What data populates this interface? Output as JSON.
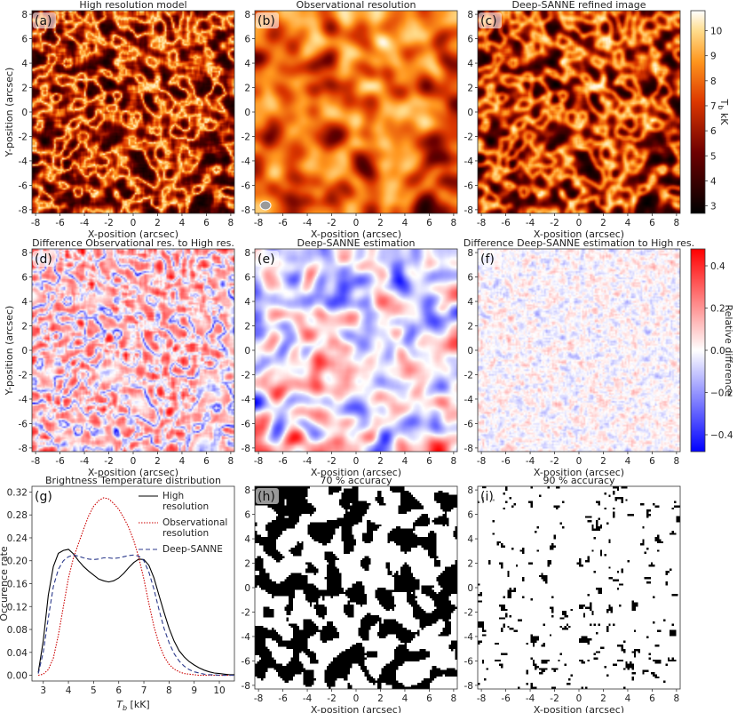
{
  "colors": {
    "heat_low": "#000000",
    "heat_high": "#ffffff",
    "div_neg": "#0000ff",
    "div_pos": "#ff0000",
    "line_high": "#000000",
    "line_obs": "#cc0000",
    "line_deep": "#2c3a8c"
  },
  "chart_data": [
    {
      "id": "a",
      "letter": "(a)",
      "type": "heatmap",
      "title": "High resolution model",
      "colormap": "gist_heat_r",
      "xlabel": "X-position (arcsec)",
      "ylabel": "Y-position (arcsec)",
      "xlim": [
        -8.3,
        8.3
      ],
      "ylim": [
        -8.3,
        8.3
      ],
      "xticks": [
        "-8",
        "-6",
        "-4",
        "-2",
        "0",
        "2",
        "4",
        "6",
        "8"
      ],
      "yticks": [
        "-8",
        "-6",
        "-4",
        "-2",
        "0",
        "2",
        "4",
        "6",
        "8"
      ]
    },
    {
      "id": "b",
      "letter": "(b)",
      "type": "heatmap",
      "title": "Observational resolution",
      "colormap": "gist_heat_r",
      "xlabel": "X-position (arcsec)",
      "xlim": [
        -8.3,
        8.3
      ],
      "ylim": [
        -8.3,
        8.3
      ],
      "xticks": [
        "-8",
        "-6",
        "-4",
        "-2",
        "0",
        "2",
        "4",
        "6",
        "8"
      ],
      "yticks": [
        "-8",
        "-6",
        "-4",
        "-2",
        "0",
        "2",
        "4",
        "6",
        "8"
      ],
      "beam": "grey ellipse, bottom-left"
    },
    {
      "id": "c",
      "letter": "(c)",
      "type": "heatmap",
      "title": "Deep-SANNE refined image",
      "colormap": "gist_heat_r",
      "xlabel": "X-position (arcsec)",
      "xlim": [
        -8.3,
        8.3
      ],
      "ylim": [
        -8.3,
        8.3
      ],
      "xticks": [
        "-8",
        "-6",
        "-4",
        "-2",
        "0",
        "2",
        "4",
        "6",
        "8"
      ],
      "yticks": [
        "-8",
        "-6",
        "-4",
        "-2",
        "0",
        "2",
        "4",
        "6",
        "8"
      ]
    },
    {
      "id": "cb1",
      "type": "colorbar",
      "label": "T",
      "label_sub": "b",
      "label_unit": " kK",
      "range": [
        2.7,
        10.8
      ],
      "ticks": [
        "3",
        "4",
        "5",
        "6",
        "7",
        "8",
        "9",
        "10"
      ],
      "tick_values": [
        3,
        4,
        5,
        6,
        7,
        8,
        9,
        10
      ]
    },
    {
      "id": "d",
      "letter": "(d)",
      "type": "heatmap",
      "title": "Difference Observational res. to High res.",
      "colormap": "bwr",
      "xlabel": "X-position (arcsec)",
      "ylabel": "Y-position (arcsec)",
      "xlim": [
        -8.3,
        8.3
      ],
      "ylim": [
        -8.3,
        8.3
      ],
      "xticks": [
        "-8",
        "-6",
        "-4",
        "-2",
        "0",
        "2",
        "4",
        "6",
        "8"
      ],
      "yticks": [
        "-8",
        "-6",
        "-4",
        "-2",
        "0",
        "2",
        "4",
        "6",
        "8"
      ]
    },
    {
      "id": "e",
      "letter": "(e)",
      "type": "heatmap",
      "title": "Deep-SANNE estimation",
      "colormap": "bwr",
      "xlabel": "X-position (arcsec)",
      "xlim": [
        -8.3,
        8.3
      ],
      "ylim": [
        -8.3,
        8.3
      ],
      "xticks": [
        "-8",
        "-6",
        "-4",
        "-2",
        "0",
        "2",
        "4",
        "6",
        "8"
      ],
      "yticks": [
        "-8",
        "-6",
        "-4",
        "-2",
        "0",
        "2",
        "4",
        "6",
        "8"
      ]
    },
    {
      "id": "f",
      "letter": "(f)",
      "type": "heatmap",
      "title": "Difference Deep-SANNE estimation to High res.",
      "colormap": "bwr",
      "xlabel": "X-position (arcsec)",
      "xlim": [
        -8.3,
        8.3
      ],
      "ylim": [
        -8.3,
        8.3
      ],
      "xticks": [
        "-8",
        "-6",
        "-4",
        "-2",
        "0",
        "2",
        "4",
        "6",
        "8"
      ],
      "yticks": [
        "-8",
        "-6",
        "-4",
        "-2",
        "0",
        "2",
        "4",
        "6",
        "8"
      ]
    },
    {
      "id": "cb2",
      "type": "colorbar",
      "label": "Relative difference",
      "range": [
        -0.48,
        0.48
      ],
      "ticks": [
        "0.4",
        "0.2",
        "0.0",
        "−0.2",
        "−0.4"
      ],
      "tick_values": [
        0.4,
        0.2,
        0.0,
        -0.2,
        -0.4
      ]
    },
    {
      "id": "g",
      "letter": "(g)",
      "type": "line",
      "title": "Brightness Temperature distribution",
      "xlabel": "T",
      "xlabel_sub": "b",
      "xlabel_unit": " [kK]",
      "ylabel": "Occurence rate",
      "xlim": [
        2.55,
        10.6
      ],
      "ylim": [
        -0.01,
        0.33
      ],
      "xticks": [
        "3",
        "4",
        "5",
        "6",
        "7",
        "8",
        "9",
        "10"
      ],
      "xtick_values": [
        3,
        4,
        5,
        6,
        7,
        8,
        9,
        10
      ],
      "yticks": [
        "0.00",
        "0.04",
        "0.08",
        "0.12",
        "0.16",
        "0.20",
        "0.24",
        "0.28",
        "0.32"
      ],
      "ytick_values": [
        0.0,
        0.04,
        0.08,
        0.12,
        0.16,
        0.2,
        0.24,
        0.28,
        0.32
      ],
      "x": [
        2.8,
        3.0,
        3.2,
        3.4,
        3.6,
        3.8,
        4.0,
        4.2,
        4.4,
        4.6,
        4.8,
        5.0,
        5.2,
        5.4,
        5.6,
        5.8,
        6.0,
        6.2,
        6.4,
        6.6,
        6.8,
        7.0,
        7.2,
        7.4,
        7.6,
        7.8,
        8.0,
        8.2,
        8.4,
        8.6,
        8.8,
        9.0,
        9.2,
        9.4,
        9.6,
        9.8,
        10.0,
        10.2,
        10.4,
        10.6
      ],
      "legend": "top-right",
      "series": [
        {
          "name": "High resolution",
          "legend_lines": [
            "High",
            "resolution"
          ],
          "style": "solid",
          "values": [
            0.005,
            0.06,
            0.14,
            0.19,
            0.213,
            0.218,
            0.22,
            0.212,
            0.2,
            0.19,
            0.182,
            0.175,
            0.168,
            0.165,
            0.163,
            0.165,
            0.17,
            0.178,
            0.188,
            0.197,
            0.203,
            0.202,
            0.192,
            0.17,
            0.14,
            0.11,
            0.082,
            0.06,
            0.043,
            0.032,
            0.024,
            0.018,
            0.013,
            0.009,
            0.006,
            0.004,
            0.003,
            0.002,
            0.001,
            0.001
          ]
        },
        {
          "name": "Observational resolution",
          "legend_lines": [
            "Observational",
            "resolution"
          ],
          "style": "dotted",
          "values": [
            0.0,
            0.002,
            0.01,
            0.03,
            0.07,
            0.12,
            0.17,
            0.205,
            0.23,
            0.255,
            0.278,
            0.295,
            0.305,
            0.31,
            0.308,
            0.3,
            0.29,
            0.275,
            0.258,
            0.235,
            0.205,
            0.168,
            0.125,
            0.085,
            0.055,
            0.033,
            0.019,
            0.011,
            0.006,
            0.003,
            0.002,
            0.001,
            0.0,
            0.0,
            0.0,
            0.0,
            0.0,
            0.0,
            0.0,
            0.0
          ]
        },
        {
          "name": "Deep-SANNE",
          "legend_lines": [
            "Deep-SANNE"
          ],
          "style": "dashed",
          "values": [
            0.003,
            0.04,
            0.1,
            0.155,
            0.185,
            0.2,
            0.207,
            0.21,
            0.208,
            0.205,
            0.203,
            0.202,
            0.203,
            0.205,
            0.205,
            0.204,
            0.205,
            0.207,
            0.209,
            0.21,
            0.208,
            0.2,
            0.18,
            0.15,
            0.115,
            0.082,
            0.057,
            0.038,
            0.025,
            0.016,
            0.01,
            0.006,
            0.004,
            0.002,
            0.001,
            0.001,
            0.0,
            0.0,
            0.0,
            0.0
          ]
        }
      ]
    },
    {
      "id": "h",
      "letter": "(h)",
      "type": "heatmap",
      "title": "70 % accuracy",
      "colormap": "binary",
      "xlabel": "X-position (arcsec)",
      "xlim": [
        -8.3,
        8.3
      ],
      "ylim": [
        -8.3,
        8.3
      ],
      "xticks": [
        "-8",
        "-6",
        "-4",
        "-2",
        "0",
        "2",
        "4",
        "6",
        "8"
      ],
      "yticks": [
        "-8",
        "-6",
        "-4",
        "-2",
        "0",
        "2",
        "4",
        "6",
        "8"
      ]
    },
    {
      "id": "i",
      "letter": "(i)",
      "type": "heatmap",
      "title": "90 % accuracy",
      "colormap": "binary",
      "xlabel": "X-position (arcsec)",
      "xlim": [
        -8.3,
        8.3
      ],
      "ylim": [
        -8.3,
        8.3
      ],
      "xticks": [
        "-8",
        "-6",
        "-4",
        "-2",
        "0",
        "2",
        "4",
        "6",
        "8"
      ],
      "yticks": [
        "-8",
        "-6",
        "-4",
        "-2",
        "0",
        "2",
        "4",
        "6",
        "8"
      ]
    }
  ]
}
